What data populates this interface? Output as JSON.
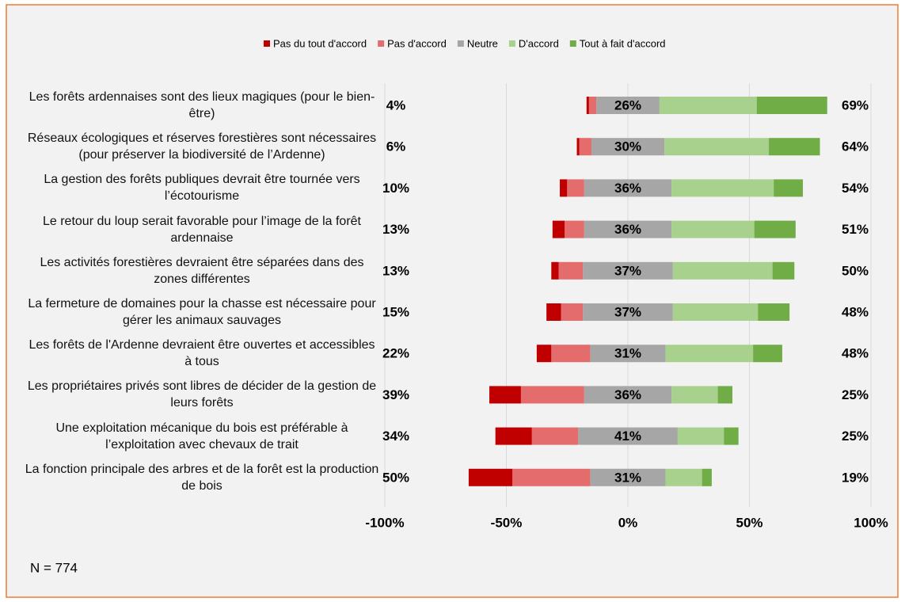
{
  "chart_data": {
    "type": "diverging_bar",
    "categories": [
      "Les forêts ardennaises sont des lieux magiques (pour le bien-être)",
      "Réseaux écologiques et réserves forestières sont nécessaires (pour préserver la biodiversité de l’Ardenne)",
      "La gestion des forêts publiques devrait être tournée vers l’écotourisme",
      "Le retour du loup serait favorable pour l’image de la forêt ardennaise",
      "Les activités forestières devraient être séparées dans des zones différentes",
      "La fermeture de domaines pour la chasse est nécessaire pour gérer les animaux sauvages",
      "Les forêts de l'Ardenne devraient être ouvertes et accessibles à tous",
      "Les propriétaires privés sont libres de décider de la gestion de leurs forêts",
      "Une exploitation mécanique du bois est préférable à l’exploitation avec chevaux de trait",
      "La fonction principale des arbres et de la forêt est la production de bois"
    ],
    "series": [
      {
        "name": "Pas du tout d'accord",
        "color": "#c00000",
        "side": "left",
        "values": [
          1,
          1,
          3,
          5,
          3,
          6,
          6,
          13,
          15,
          18
        ]
      },
      {
        "name": "Pas d'accord",
        "color": "#e46c6c",
        "side": "left",
        "values": [
          3,
          5,
          7,
          8,
          10,
          9,
          16,
          26,
          19,
          32
        ]
      },
      {
        "name": "Neutre",
        "color": "#a6a6a6",
        "side": "center",
        "values": [
          26,
          30,
          36,
          36,
          37,
          37,
          31,
          36,
          41,
          31
        ],
        "value_labels": [
          "26%",
          "30%",
          "36%",
          "36%",
          "37%",
          "37%",
          "31%",
          "36%",
          "41%",
          "31%"
        ]
      },
      {
        "name": "D'accord",
        "color": "#a9d18e",
        "side": "right",
        "values": [
          40,
          43,
          42,
          34,
          41,
          35,
          36,
          19,
          19,
          15
        ]
      },
      {
        "name": "Tout à fait d'accord",
        "color": "#70ad47",
        "side": "right",
        "values": [
          29,
          21,
          12,
          17,
          9,
          13,
          12,
          6,
          6,
          4
        ]
      }
    ],
    "disagree_labels": [
      "4%",
      "6%",
      "10%",
      "13%",
      "13%",
      "15%",
      "22%",
      "39%",
      "34%",
      "50%"
    ],
    "agree_labels": [
      "69%",
      "64%",
      "54%",
      "51%",
      "50%",
      "48%",
      "48%",
      "25%",
      "25%",
      "19%"
    ],
    "xlim": [
      -100,
      100
    ],
    "xticks": [
      {
        "value": -100,
        "label": "-100%"
      },
      {
        "value": -50,
        "label": "-50%"
      },
      {
        "value": 0,
        "label": "0%"
      },
      {
        "value": 50,
        "label": "50%"
      },
      {
        "value": 100,
        "label": "100%"
      }
    ],
    "grid": true,
    "note": "N = 774"
  }
}
